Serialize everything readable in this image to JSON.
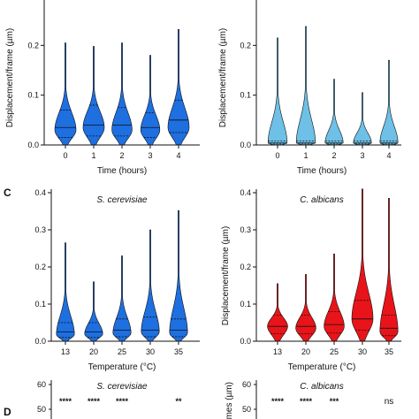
{
  "panel_labels": [
    "C",
    "D"
  ],
  "chart_data": [
    {
      "type": "violin",
      "title": "",
      "xlabel": "Time (hours)",
      "ylabel": "Displacement/frame (µm)",
      "categories": [
        "0",
        "1",
        "2",
        "3",
        "4"
      ],
      "y_ticks": [
        "0.0",
        "0.1",
        "0.2"
      ],
      "ylim": [
        0,
        0.3
      ],
      "color": "#1e6fe0",
      "series": [
        {
          "name": "",
          "max": [
            0.205,
            0.198,
            0.205,
            0.18,
            0.232
          ],
          "median": [
            0.035,
            0.04,
            0.04,
            0.035,
            0.05
          ],
          "q1": [
            0.015,
            0.018,
            0.018,
            0.015,
            0.025
          ],
          "q3": [
            0.07,
            0.08,
            0.075,
            0.065,
            0.09
          ],
          "mode": [
            0.03,
            0.035,
            0.03,
            0.03,
            0.035
          ],
          "width": [
            1.0,
            1.0,
            0.95,
            0.9,
            1.0
          ]
        }
      ]
    },
    {
      "type": "violin",
      "title": "",
      "xlabel": "Time (hours)",
      "ylabel": "Displacement/frame (µm)",
      "categories": [
        "0",
        "1",
        "2",
        "3",
        "4"
      ],
      "y_ticks": [
        "0.0",
        "0.1",
        "0.2"
      ],
      "ylim": [
        0,
        0.3
      ],
      "color": "#6ec0e6",
      "series": [
        {
          "name": "",
          "max": [
            0.215,
            0.238,
            0.132,
            0.105,
            0.17
          ],
          "median": [
            0.004,
            0.004,
            0.004,
            0.004,
            0.004
          ],
          "q1": [
            0.002,
            0.002,
            0.002,
            0.002,
            0.002
          ],
          "q3": [
            0.008,
            0.008,
            0.008,
            0.008,
            0.008
          ],
          "mode": [
            0.004,
            0.004,
            0.004,
            0.004,
            0.004
          ],
          "width": [
            0.9,
            0.9,
            0.85,
            0.85,
            0.85
          ]
        }
      ]
    },
    {
      "type": "violin",
      "title": "S. cerevisiae",
      "xlabel": "Temperature (°C)",
      "ylabel": "",
      "categories": [
        "13",
        "20",
        "25",
        "30",
        "35"
      ],
      "y_ticks": [
        "0.0",
        "0.1",
        "0.2",
        "0.3",
        "0.4"
      ],
      "ylim": [
        0,
        0.45
      ],
      "color": "#1e6fe0",
      "series": [
        {
          "name": "",
          "max": [
            0.265,
            0.16,
            0.23,
            0.3,
            0.352
          ],
          "median": [
            0.025,
            0.025,
            0.03,
            0.03,
            0.03
          ],
          "q1": [
            0.01,
            0.01,
            0.012,
            0.012,
            0.012
          ],
          "q3": [
            0.05,
            0.05,
            0.06,
            0.065,
            0.06
          ],
          "mode": [
            0.018,
            0.02,
            0.022,
            0.025,
            0.022
          ],
          "width": [
            0.85,
            0.85,
            0.85,
            0.85,
            0.85
          ]
        }
      ]
    },
    {
      "type": "violin",
      "title": "C. albicans",
      "xlabel": "Temperature (°C)",
      "ylabel": "Displacement/frame (µm)",
      "categories": [
        "13",
        "20",
        "25",
        "30",
        "35"
      ],
      "y_ticks": [
        "0.0",
        "0.1",
        "0.2",
        "0.3",
        "0.4"
      ],
      "ylim": [
        0,
        0.45
      ],
      "color": "#e8141a",
      "series": [
        {
          "name": "",
          "max": [
            0.155,
            0.18,
            0.235,
            0.41,
            0.385
          ],
          "median": [
            0.04,
            0.04,
            0.045,
            0.06,
            0.035
          ],
          "q1": [
            0.02,
            0.02,
            0.022,
            0.03,
            0.015
          ],
          "q3": [
            0.07,
            0.07,
            0.08,
            0.11,
            0.07
          ],
          "mode": [
            0.04,
            0.035,
            0.04,
            0.06,
            0.025
          ],
          "width": [
            0.95,
            0.95,
            0.95,
            1.0,
            0.85
          ]
        }
      ]
    },
    {
      "type": "partial",
      "title": "S. cerevisiae",
      "y_ticks": [
        "50",
        "60"
      ],
      "significance": [
        "****",
        "****",
        "****",
        "",
        "**"
      ]
    },
    {
      "type": "partial",
      "title": "C. albicans",
      "ylabel_fragment": "ames (µm)",
      "y_ticks": [
        "50",
        "60"
      ],
      "significance": [
        "****",
        "****",
        "***",
        "",
        "ns"
      ]
    }
  ]
}
